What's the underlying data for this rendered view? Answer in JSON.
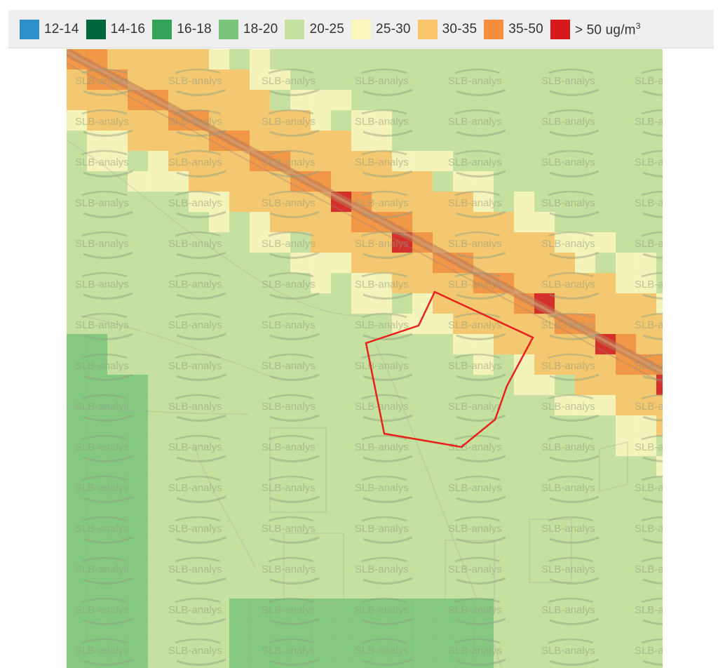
{
  "legend": {
    "items": [
      {
        "label": "12-14",
        "color": "#2f8fcb"
      },
      {
        "label": "14-16",
        "color": "#00673a"
      },
      {
        "label": "16-18",
        "color": "#33a357"
      },
      {
        "label": "18-20",
        "color": "#7cc57c"
      },
      {
        "label": "20-25",
        "color": "#c6e19f"
      },
      {
        "label": "25-30",
        "color": "#fbf6bd"
      },
      {
        "label": "30-35",
        "color": "#f9c56a"
      },
      {
        "label": "35-50",
        "color": "#f68d3c"
      },
      {
        "label": "> 50 ug/m",
        "sup": "3",
        "color": "#d7191c"
      }
    ]
  },
  "map": {
    "watermark": "SLB-analys",
    "boundary_color": "#e8211c"
  }
}
